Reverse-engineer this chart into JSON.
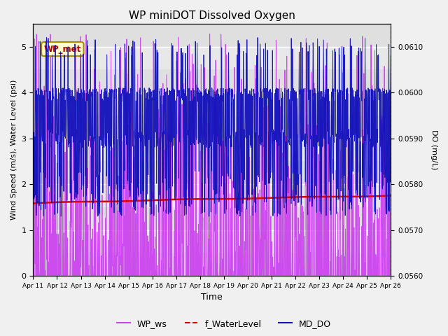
{
  "title": "WP miniDOT Dissolved Oxygen",
  "ylabel_left": "Wind Speed (m/s), Water Level (psi)",
  "ylabel_right": "DO (mg/L)",
  "xlabel": "Time",
  "ylim_left": [
    0.0,
    5.5
  ],
  "ylim_right": [
    0.056,
    0.0615
  ],
  "background_color": "#f0f0f0",
  "plot_bg_color": "#e8e8e8",
  "legend_labels": [
    "WP_ws",
    "f_WaterLevel",
    "MD_DO"
  ],
  "legend_colors": [
    "#cc44ee",
    "#dd0000",
    "#1111bb"
  ],
  "annotation_text": "WP_met",
  "annotation_color": "#aa0000",
  "annotation_bg": "#ffffcc",
  "annotation_border": "#aa8800",
  "wp_ws_color": "#cc44ee",
  "f_wl_color": "#dd0000",
  "md_do_color": "#1111bb",
  "x_tick_labels": [
    "Apr 11",
    "Apr 12",
    "Apr 13",
    "Apr 14",
    "Apr 15",
    "Apr 16",
    "Apr 17",
    "Apr 18",
    "Apr 19",
    "Apr 20",
    "Apr 21",
    "Apr 22",
    "Apr 23",
    "Apr 24",
    "Apr 25",
    "Apr 26"
  ],
  "x_tick_positions": [
    0,
    1,
    2,
    3,
    4,
    5,
    6,
    7,
    8,
    9,
    10,
    11,
    12,
    13,
    14,
    15
  ]
}
